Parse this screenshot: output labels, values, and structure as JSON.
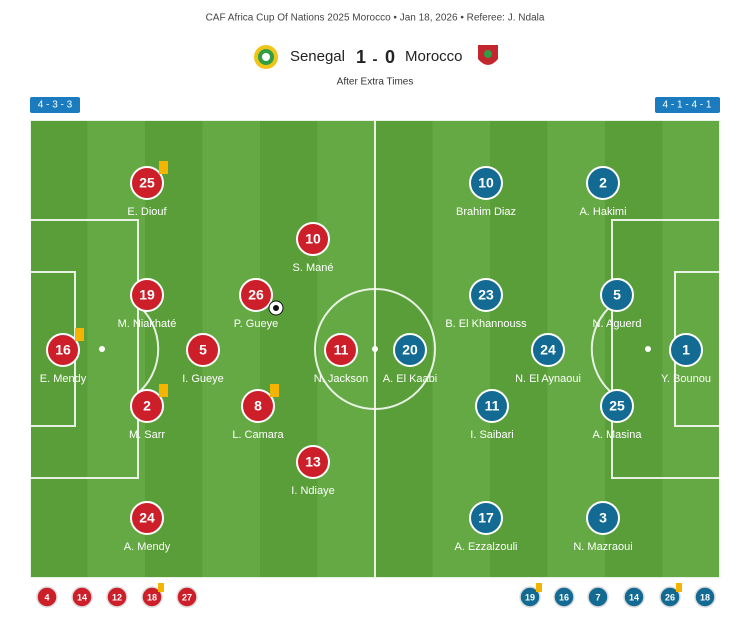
{
  "header": {
    "title": "CAF Africa Cup Of Nations 2025 Morocco • Jan 18, 2026 • Referee: J. Ndala"
  },
  "score": {
    "home_team": "Senegal",
    "home_score": "1",
    "separator": "-",
    "away_score": "0",
    "away_team": "Morocco",
    "status": "After Extra Times"
  },
  "home": {
    "formation": "4 - 3 - 3",
    "color": "#cc1f2a",
    "players": [
      {
        "number": "25",
        "name": "E. Diouf",
        "yellow_card": true
      },
      {
        "number": "10",
        "name": "S. Mané"
      },
      {
        "number": "19",
        "name": "M. Niakhaté"
      },
      {
        "number": "26",
        "name": "P. Gueye",
        "goal": true
      },
      {
        "number": "16",
        "name": "E. Mendy",
        "yellow_card": true
      },
      {
        "number": "5",
        "name": "I. Gueye"
      },
      {
        "number": "11",
        "name": "N. Jackson"
      },
      {
        "number": "2",
        "name": "M. Sarr",
        "yellow_card": true
      },
      {
        "number": "8",
        "name": "L. Camara",
        "yellow_card": true
      },
      {
        "number": "13",
        "name": "I. Ndiaye"
      },
      {
        "number": "24",
        "name": "A. Mendy"
      }
    ],
    "substitutes": [
      {
        "number": "4"
      },
      {
        "number": "14"
      },
      {
        "number": "12"
      },
      {
        "number": "18",
        "yellow_card": true
      },
      {
        "number": "27"
      }
    ]
  },
  "away": {
    "formation": "4 - 1 - 4 - 1",
    "color": "#136b94",
    "players": [
      {
        "number": "10",
        "name": "Brahim Diaz"
      },
      {
        "number": "2",
        "name": "A. Hakimi"
      },
      {
        "number": "23",
        "name": "B. El Khannouss"
      },
      {
        "number": "5",
        "name": "N. Aguerd"
      },
      {
        "number": "20",
        "name": "A. El Kaabi"
      },
      {
        "number": "24",
        "name": "N. El Aynaoui"
      },
      {
        "number": "1",
        "name": "Y. Bounou"
      },
      {
        "number": "11",
        "name": "I. Saibari"
      },
      {
        "number": "25",
        "name": "A. Masina"
      },
      {
        "number": "17",
        "name": "A. Ezzalzouli"
      },
      {
        "number": "3",
        "name": "N. Mazraoui"
      }
    ],
    "substitutes": [
      {
        "number": "19",
        "yellow_card": true
      },
      {
        "number": "16"
      },
      {
        "number": "7"
      },
      {
        "number": "14"
      },
      {
        "number": "26",
        "yellow_card": true
      },
      {
        "number": "18"
      }
    ]
  }
}
